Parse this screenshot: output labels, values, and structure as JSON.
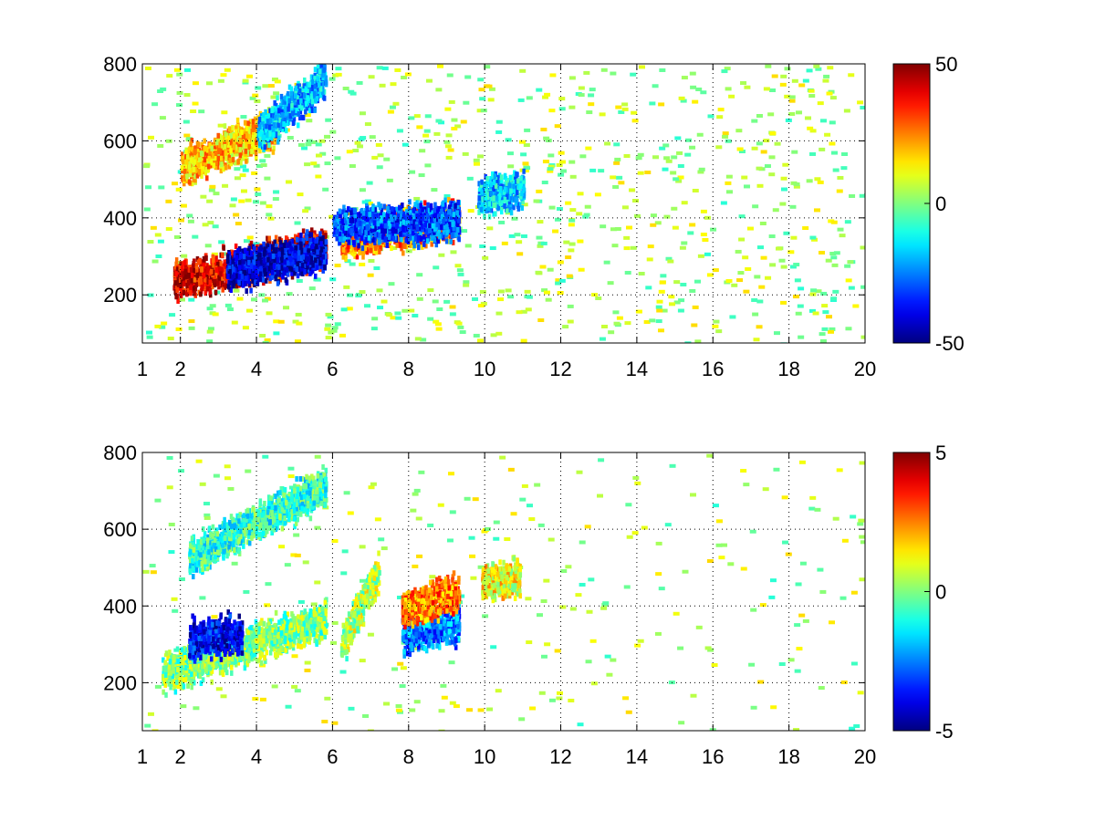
{
  "chart_data": [
    {
      "type": "heatmap",
      "title": "",
      "xlabel": "",
      "ylabel": "",
      "xlim": [
        1,
        20
      ],
      "ylim": [
        75,
        800
      ],
      "x_ticks": [
        "1",
        "2",
        "4",
        "6",
        "8",
        "10",
        "12",
        "14",
        "16",
        "18",
        "20"
      ],
      "y_ticks": [
        "200",
        "400",
        "600",
        "800"
      ],
      "grid": "dotted",
      "colormap": "jet",
      "colorbar": {
        "range": [
          -50,
          50
        ],
        "tick_labels": [
          "50",
          "0",
          "-50"
        ]
      },
      "features": [
        {
          "description": "red band",
          "x_range": [
            1.8,
            5.8
          ],
          "y_start": 240,
          "y_end": 330,
          "value": 40
        },
        {
          "description": "blue band",
          "x_range": [
            3.2,
            5.8
          ],
          "y_start": 270,
          "y_end": 320,
          "value": -42
        },
        {
          "description": "orange band",
          "x_range": [
            6.2,
            9.3
          ],
          "y_start": 350,
          "y_end": 400,
          "value": 25
        },
        {
          "description": "blue band",
          "x_range": [
            6.0,
            9.3
          ],
          "y_start": 380,
          "y_end": 400,
          "value": -30
        },
        {
          "description": "cyan patch",
          "x_range": [
            9.8,
            11.0
          ],
          "y_start": 460,
          "y_end": 480,
          "value": -18
        },
        {
          "description": "yellow band",
          "x_range": [
            2.0,
            4.5
          ],
          "y_start": 540,
          "y_end": 640,
          "value": 18
        },
        {
          "description": "cyan band",
          "x_range": [
            4.0,
            5.8
          ],
          "y_start": 620,
          "y_end": 770,
          "value": -20
        }
      ]
    },
    {
      "type": "heatmap",
      "title": "",
      "xlabel": "",
      "ylabel": "",
      "xlim": [
        1,
        20
      ],
      "ylim": [
        75,
        800
      ],
      "x_ticks": [
        "1",
        "2",
        "4",
        "6",
        "8",
        "10",
        "12",
        "14",
        "16",
        "18",
        "20"
      ],
      "y_ticks": [
        "200",
        "400",
        "600",
        "800"
      ],
      "grid": "dotted",
      "colormap": "jet",
      "colorbar": {
        "range": [
          -5,
          5
        ],
        "tick_labels": [
          "5",
          "0",
          "-5"
        ]
      },
      "features": [
        {
          "description": "mixed band",
          "x_range": [
            1.5,
            5.8
          ],
          "y_start": 230,
          "y_end": 370,
          "value": 0
        },
        {
          "description": "blue band",
          "x_range": [
            2.2,
            3.6
          ],
          "y_start": 320,
          "y_end": 330,
          "value": -3.8
        },
        {
          "description": "cyan band",
          "x_range": [
            2.2,
            5.8
          ],
          "y_start": 530,
          "y_end": 720,
          "value": -0.8
        },
        {
          "description": "mixed band",
          "x_range": [
            6.2,
            7.2
          ],
          "y_start": 300,
          "y_end": 500,
          "value": 0.5
        },
        {
          "description": "blue band",
          "x_range": [
            7.8,
            9.3
          ],
          "y_start": 330,
          "y_end": 360,
          "value": -2.5
        },
        {
          "description": "orange band",
          "x_range": [
            7.8,
            9.3
          ],
          "y_start": 400,
          "y_end": 440,
          "value": 2.5
        },
        {
          "description": "yellow patch",
          "x_range": [
            9.9,
            10.9
          ],
          "y_start": 470,
          "y_end": 480,
          "value": 1.2
        }
      ]
    }
  ]
}
